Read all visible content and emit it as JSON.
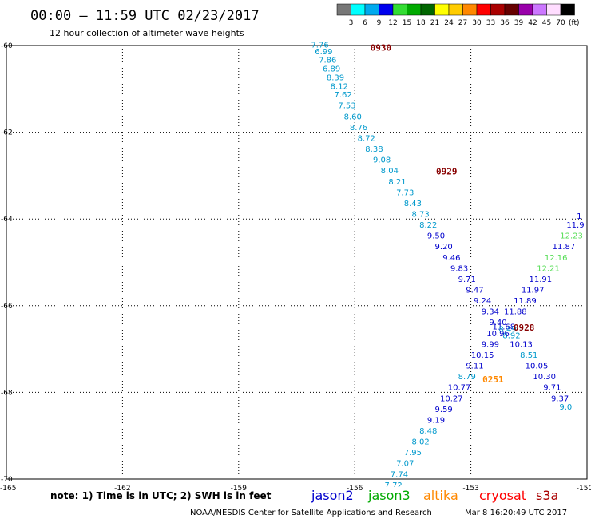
{
  "header": {
    "title": "00:00 – 11:59 UTC 02/23/2017",
    "subtitle": "12 hour collection of altimeter wave heights"
  },
  "colorbar": {
    "unit": "(ft)",
    "ticks": [
      "3",
      "6",
      "9",
      "12",
      "15",
      "18",
      "21",
      "24",
      "27",
      "30",
      "33",
      "36",
      "39",
      "42",
      "45",
      "70"
    ],
    "colors": [
      "#777777",
      "#00ffff",
      "#00aaee",
      "#0000ee",
      "#33dd33",
      "#00aa00",
      "#006600",
      "#ffff00",
      "#ffcc00",
      "#ff8800",
      "#ff0000",
      "#aa0000",
      "#660000",
      "#9900aa",
      "#cc77ff",
      "#ffddff",
      "#000000"
    ]
  },
  "footer": {
    "note": "note: 1) Time is in UTC; 2) SWH is in feet",
    "credit": "NOAA/NESDIS Center for Satellite Applications and Research",
    "timestamp": "Mar  8 16:20:49 UTC 2017",
    "satellites": [
      {
        "name": "jason2",
        "color": "#0000cc"
      },
      {
        "name": "jason3",
        "color": "#00aa00"
      },
      {
        "name": "altika",
        "color": "#ff8800"
      },
      {
        "name": "cryosat",
        "color": "#ff0000"
      },
      {
        "name": "s3a",
        "color": "#aa0000"
      }
    ]
  },
  "chart_data": {
    "type": "scatter",
    "xlim": [
      -165,
      -150
    ],
    "ylim": [
      -70,
      -60
    ],
    "x_ticks": [
      -165,
      -162,
      -159,
      -156,
      -153,
      -150
    ],
    "x_tick_labels": [
      "-165",
      "-162",
      "-159",
      "-156",
      "-153",
      "-150"
    ],
    "y_ticks": [
      -60,
      -62,
      -64,
      -66,
      -68,
      -70
    ],
    "y_tick_labels": [
      "-60",
      "-62",
      "-64",
      "-66",
      "-68",
      "-70"
    ],
    "grid": true,
    "pass_labels": [
      {
        "text": "0930",
        "x": -155.6,
        "y": -60.05,
        "color": "#880000"
      },
      {
        "text": "0929",
        "x": -153.9,
        "y": -62.9,
        "color": "#880000"
      },
      {
        "text": "0928",
        "x": -151.9,
        "y": -66.5,
        "color": "#880000"
      },
      {
        "text": "0251",
        "x": -152.7,
        "y": -67.7,
        "color": "#ff8800"
      }
    ],
    "series": [
      {
        "name": "jason2",
        "color": "#0000cc",
        "points": [
          {
            "x": -156.9,
            "y": -60.05,
            "v": "7.76",
            "c": "#0099cc"
          },
          {
            "x": -156.8,
            "y": -60.2,
            "v": "6.99",
            "c": "#0099cc"
          },
          {
            "x": -156.7,
            "y": -60.4,
            "v": "7.86",
            "c": "#0099cc"
          },
          {
            "x": -156.6,
            "y": -60.6,
            "v": "6.89",
            "c": "#0099cc"
          },
          {
            "x": -156.5,
            "y": -60.8,
            "v": "8.39",
            "c": "#0099cc"
          },
          {
            "x": -156.4,
            "y": -61.0,
            "v": "8.12",
            "c": "#0099cc"
          },
          {
            "x": -156.3,
            "y": -61.2,
            "v": "7.62",
            "c": "#0099cc"
          },
          {
            "x": -156.2,
            "y": -61.45,
            "v": "7.53",
            "c": "#0099cc"
          },
          {
            "x": -156.05,
            "y": -61.7,
            "v": "8.60",
            "c": "#0099cc"
          },
          {
            "x": -155.9,
            "y": -61.95,
            "v": "8.76",
            "c": "#0099cc"
          },
          {
            "x": -155.7,
            "y": -62.2,
            "v": "8.72",
            "c": "#0099cc"
          },
          {
            "x": -155.5,
            "y": -62.45,
            "v": "8.38",
            "c": "#0099cc"
          },
          {
            "x": -155.3,
            "y": -62.7,
            "v": "9.08",
            "c": "#0099cc"
          },
          {
            "x": -155.1,
            "y": -62.95,
            "v": "8.04",
            "c": "#0099cc"
          },
          {
            "x": -154.9,
            "y": -63.2,
            "v": "8.21",
            "c": "#0099cc"
          },
          {
            "x": -154.7,
            "y": -63.45,
            "v": "7.73",
            "c": "#0099cc"
          },
          {
            "x": -154.5,
            "y": -63.7,
            "v": "8.43",
            "c": "#0099cc"
          },
          {
            "x": -154.3,
            "y": -63.95,
            "v": "8.73",
            "c": "#0099cc"
          },
          {
            "x": -154.1,
            "y": -64.2,
            "v": "8.22",
            "c": "#0099cc"
          },
          {
            "x": -153.9,
            "y": -64.45,
            "v": "9.50",
            "c": "#0000cc"
          },
          {
            "x": -153.7,
            "y": -64.7,
            "v": "9.20",
            "c": "#0000cc"
          },
          {
            "x": -153.5,
            "y": -64.95,
            "v": "9.46",
            "c": "#0000cc"
          },
          {
            "x": -153.3,
            "y": -65.2,
            "v": "9.83",
            "c": "#0000cc"
          },
          {
            "x": -153.1,
            "y": -65.45,
            "v": "9.71",
            "c": "#0000cc"
          },
          {
            "x": -152.9,
            "y": -65.7,
            "v": "9.47",
            "c": "#0000cc"
          },
          {
            "x": -152.7,
            "y": -65.95,
            "v": "9.24",
            "c": "#0000cc"
          },
          {
            "x": -152.5,
            "y": -66.2,
            "v": "9.34",
            "c": "#0000cc"
          },
          {
            "x": -152.3,
            "y": -66.45,
            "v": "9.40",
            "c": "#0000cc"
          },
          {
            "x": -152.15,
            "y": -66.55,
            "v": "11.68",
            "c": "#0000cc"
          },
          {
            "x": -152.05,
            "y": -66.6,
            "v": "8.49",
            "c": "#0099cc"
          },
          {
            "x": -151.95,
            "y": -66.75,
            "v": "8.92",
            "c": "#0099cc"
          },
          {
            "x": -151.7,
            "y": -66.95,
            "v": "10.13",
            "c": "#0000cc"
          },
          {
            "x": -151.5,
            "y": -67.2,
            "v": "8.51",
            "c": "#0099cc"
          },
          {
            "x": -151.3,
            "y": -67.45,
            "v": "10.05",
            "c": "#0000cc"
          },
          {
            "x": -151.1,
            "y": -67.7,
            "v": "10.30",
            "c": "#0000cc"
          },
          {
            "x": -150.9,
            "y": -67.95,
            "v": "9.71",
            "c": "#0000cc"
          },
          {
            "x": -150.7,
            "y": -68.2,
            "v": "9.37",
            "c": "#0000cc"
          },
          {
            "x": -150.55,
            "y": -68.4,
            "v": "9.0",
            "c": "#0099cc"
          }
        ]
      },
      {
        "name": "jason3",
        "color": "#00aa00",
        "points": [
          {
            "x": -150.2,
            "y": -64.0,
            "v": "1",
            "c": "#0000cc"
          },
          {
            "x": -150.3,
            "y": -64.2,
            "v": "11.9",
            "c": "#0000cc"
          },
          {
            "x": -150.4,
            "y": -64.45,
            "v": "12.23",
            "c": "#55dd55"
          },
          {
            "x": -150.6,
            "y": -64.7,
            "v": "11.87",
            "c": "#0000cc"
          },
          {
            "x": -150.8,
            "y": -64.95,
            "v": "12.16",
            "c": "#55dd55"
          },
          {
            "x": -151.0,
            "y": -65.2,
            "v": "12.21",
            "c": "#55dd55"
          },
          {
            "x": -151.2,
            "y": -65.45,
            "v": "11.91",
            "c": "#0000cc"
          },
          {
            "x": -151.4,
            "y": -65.7,
            "v": "11.97",
            "c": "#0000cc"
          },
          {
            "x": -151.6,
            "y": -65.95,
            "v": "11.89",
            "c": "#0000cc"
          },
          {
            "x": -151.85,
            "y": -66.2,
            "v": "11.88",
            "c": "#0000cc"
          }
        ]
      },
      {
        "name": "altika",
        "color": "#ff8800",
        "points": [
          {
            "x": -152.3,
            "y": -66.7,
            "v": "10.96",
            "c": "#0000cc"
          },
          {
            "x": -152.5,
            "y": -66.95,
            "v": "9.99",
            "c": "#0000cc"
          },
          {
            "x": -152.7,
            "y": -67.2,
            "v": "10.15",
            "c": "#0000cc"
          },
          {
            "x": -152.9,
            "y": -67.45,
            "v": "9.11",
            "c": "#0000cc"
          },
          {
            "x": -153.1,
            "y": -67.7,
            "v": "8.79",
            "c": "#0099cc"
          },
          {
            "x": -153.3,
            "y": -67.95,
            "v": "10.77",
            "c": "#0000cc"
          },
          {
            "x": -153.5,
            "y": -68.2,
            "v": "10.27",
            "c": "#0000cc"
          },
          {
            "x": -153.7,
            "y": -68.45,
            "v": "9.59",
            "c": "#0000cc"
          },
          {
            "x": -153.9,
            "y": -68.7,
            "v": "9.19",
            "c": "#0000cc"
          },
          {
            "x": -154.1,
            "y": -68.95,
            "v": "8.48",
            "c": "#0099cc"
          },
          {
            "x": -154.3,
            "y": -69.2,
            "v": "8.02",
            "c": "#0099cc"
          },
          {
            "x": -154.5,
            "y": -69.45,
            "v": "7.95",
            "c": "#0099cc"
          },
          {
            "x": -154.7,
            "y": -69.7,
            "v": "7.07",
            "c": "#0099cc"
          },
          {
            "x": -154.85,
            "y": -69.95,
            "v": "7.74",
            "c": "#0099cc"
          },
          {
            "x": -155.0,
            "y": -70.2,
            "v": "7.72",
            "c": "#0099cc"
          }
        ]
      }
    ]
  }
}
